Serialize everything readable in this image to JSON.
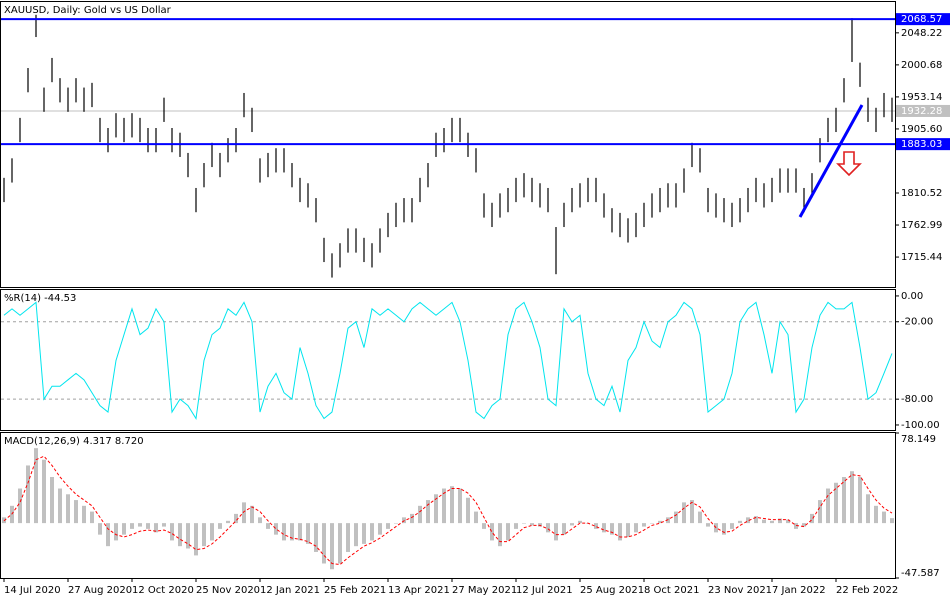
{
  "chart_data": [
    {
      "type": "hlc",
      "title": "XAUUSD, Daily:  Gold vs US Dollar",
      "color": "#000000",
      "low": [
        1797,
        1826,
        1886,
        1960,
        2042,
        1931,
        1975,
        1945,
        1931,
        1945,
        1931,
        1938,
        1886,
        1871,
        1893,
        1886,
        1893,
        1886,
        1871,
        1871,
        1916,
        1871,
        1864,
        1834,
        1782,
        1819,
        1849,
        1834,
        1856,
        1871,
        1923,
        1901,
        1826,
        1834,
        1841,
        1841,
        1819,
        1797,
        1789,
        1767,
        1708,
        1685,
        1700,
        1722,
        1722,
        1708,
        1700,
        1722,
        1745,
        1760,
        1767,
        1767,
        1797,
        1819,
        1864,
        1871,
        1886,
        1886,
        1864,
        1841,
        1774,
        1760,
        1774,
        1782,
        1797,
        1804,
        1797,
        1789,
        1782,
        1690,
        1760,
        1782,
        1789,
        1797,
        1797,
        1774,
        1752,
        1745,
        1737,
        1745,
        1760,
        1774,
        1782,
        1789,
        1789,
        1811,
        1849,
        1841,
        1782,
        1774,
        1767,
        1760,
        1767,
        1782,
        1797,
        1789,
        1797,
        1811,
        1811,
        1811,
        1782,
        1804,
        1856,
        1886,
        1901,
        1945,
        2005,
        1968,
        1916,
        1901,
        1923,
        1916
      ],
      "high": [
        1833,
        1862,
        1922,
        1996,
        2075,
        1967,
        2011,
        1981,
        1967,
        1981,
        1967,
        1974,
        1922,
        1907,
        1929,
        1922,
        1929,
        1922,
        1907,
        1907,
        1952,
        1907,
        1900,
        1870,
        1818,
        1855,
        1885,
        1870,
        1892,
        1907,
        1959,
        1937,
        1862,
        1870,
        1877,
        1877,
        1855,
        1833,
        1825,
        1803,
        1744,
        1721,
        1736,
        1758,
        1758,
        1744,
        1736,
        1758,
        1781,
        1796,
        1803,
        1803,
        1833,
        1855,
        1900,
        1907,
        1922,
        1922,
        1900,
        1877,
        1810,
        1796,
        1810,
        1818,
        1833,
        1840,
        1833,
        1825,
        1818,
        1760,
        1796,
        1818,
        1825,
        1833,
        1833,
        1810,
        1788,
        1781,
        1773,
        1781,
        1796,
        1810,
        1818,
        1825,
        1825,
        1847,
        1885,
        1877,
        1818,
        1810,
        1803,
        1796,
        1803,
        1818,
        1833,
        1825,
        1833,
        1847,
        1847,
        1847,
        1818,
        1840,
        1892,
        1922,
        1937,
        1981,
        2070,
        2004,
        1952,
        1937,
        1959,
        1952
      ],
      "ylim": [
        1671,
        2094
      ],
      "yticks": [
        2048.22,
        2000.68,
        1953.14,
        {
          "value": 1905.6,
          "label": "1905.60"
        },
        1810.52,
        1762.99,
        1715.44
      ],
      "levels": [
        {
          "value": 2068.57,
          "color": "#0000ff"
        },
        {
          "value": 1883.03,
          "color": "#0000ff"
        }
      ],
      "last_price": {
        "value": 1932.28,
        "color": "#c0c0c0"
      }
    },
    {
      "type": "line",
      "title": "%R(14) -44.53",
      "color": "#00e5ee",
      "values": [
        -15,
        -10,
        -15,
        -10,
        -5,
        -80,
        -70,
        -70,
        -65,
        -60,
        -65,
        -75,
        -85,
        -90,
        -50,
        -30,
        -10,
        -30,
        -25,
        -10,
        -20,
        -90,
        -80,
        -85,
        -95,
        -50,
        -30,
        -25,
        -10,
        -15,
        -5,
        -20,
        -90,
        -70,
        -60,
        -75,
        -80,
        -40,
        -60,
        -85,
        -95,
        -90,
        -60,
        -25,
        -20,
        -40,
        -10,
        -15,
        -10,
        -15,
        -20,
        -10,
        -5,
        -10,
        -15,
        -10,
        -5,
        -20,
        -50,
        -90,
        -95,
        -85,
        -80,
        -30,
        -10,
        -5,
        -20,
        -40,
        -80,
        -85,
        -10,
        -20,
        -15,
        -60,
        -80,
        -85,
        -70,
        -90,
        -50,
        -40,
        -20,
        -35,
        -40,
        -20,
        -15,
        -5,
        -10,
        -30,
        -90,
        -85,
        -80,
        -60,
        -20,
        -10,
        -5,
        -30,
        -60,
        -20,
        -30,
        -90,
        -80,
        -40,
        -15,
        -5,
        -10,
        -10,
        -5,
        -40,
        -80,
        -75,
        -60,
        -44.53
      ],
      "ylim": [
        -103.9,
        4.6
      ],
      "yticks": [
        {
          "value": 0,
          "label": "0.00"
        },
        {
          "value": -20,
          "label": "-20.00"
        },
        {
          "value": -80,
          "label": "-80.00"
        },
        {
          "value": -100,
          "label": "-100.00"
        }
      ],
      "levels": [
        -20,
        -80
      ]
    },
    {
      "type": "macd",
      "title": "MACD(12,26,9) 4.317 8.720",
      "categories": [
        "14 Jul 2020",
        null,
        null,
        null,
        null,
        null,
        null,
        null,
        "27 Aug 2020",
        null,
        null,
        null,
        null,
        null,
        null,
        null,
        "12 Oct 2020",
        null,
        null,
        null,
        null,
        null,
        null,
        null,
        "25 Nov 2020",
        null,
        null,
        null,
        null,
        null,
        null,
        null,
        "12 Jan 2021",
        null,
        null,
        null,
        null,
        null,
        null,
        null,
        "25 Feb 2021",
        null,
        null,
        null,
        null,
        null,
        null,
        null,
        "13 Apr 2021",
        null,
        null,
        null,
        null,
        null,
        null,
        null,
        "27 May 2021",
        null,
        null,
        null,
        null,
        null,
        null,
        null,
        "12 Jul 2021",
        null,
        null,
        null,
        null,
        null,
        null,
        null,
        "25 Aug 2021",
        null,
        null,
        null,
        null,
        null,
        null,
        null,
        "8 Oct 2021",
        null,
        null,
        null,
        null,
        null,
        null,
        null,
        "23 Nov 2021",
        null,
        null,
        null,
        null,
        null,
        null,
        null,
        "7 Jan 2022",
        null,
        null,
        null,
        null,
        null,
        null,
        null,
        "22 Feb 2022",
        null,
        null,
        null,
        null,
        null,
        null,
        null
      ],
      "series": [
        {
          "name": "MACD",
          "color": "#c0c0c0",
          "values": [
            5,
            15,
            30,
            50,
            65,
            55,
            40,
            30,
            25,
            20,
            15,
            10,
            -10,
            -20,
            -15,
            -10,
            -5,
            -3,
            -5,
            -8,
            -3,
            -15,
            -20,
            -22,
            -28,
            -20,
            -15,
            -5,
            2,
            8,
            18,
            15,
            5,
            -5,
            -10,
            -15,
            -15,
            -15,
            -18,
            -25,
            -35,
            -40,
            -35,
            -25,
            -20,
            -18,
            -15,
            -10,
            -5,
            0,
            5,
            8,
            15,
            20,
            25,
            30,
            32,
            30,
            22,
            10,
            -5,
            -15,
            -20,
            -15,
            -5,
            0,
            -2,
            -3,
            -8,
            -15,
            -10,
            -2,
            2,
            0,
            -5,
            -8,
            -10,
            -15,
            -12,
            -8,
            -3,
            0,
            2,
            5,
            10,
            18,
            20,
            10,
            -3,
            -8,
            -10,
            -5,
            2,
            5,
            6,
            3,
            2,
            4,
            3,
            -5,
            -3,
            8,
            20,
            30,
            35,
            40,
            45,
            40,
            25,
            15,
            10,
            4.317
          ]
        },
        {
          "name": "Signal",
          "color": "#ff0000",
          "values": [
            2,
            8,
            18,
            35,
            55,
            58,
            50,
            40,
            32,
            25,
            20,
            15,
            5,
            -5,
            -10,
            -12,
            -10,
            -7,
            -6,
            -7,
            -6,
            -9,
            -14,
            -18,
            -23,
            -22,
            -18,
            -12,
            -5,
            2,
            10,
            14,
            10,
            2,
            -5,
            -10,
            -13,
            -14,
            -16,
            -20,
            -28,
            -35,
            -36,
            -30,
            -25,
            -20,
            -17,
            -13,
            -8,
            -3,
            2,
            5,
            10,
            16,
            21,
            26,
            30,
            30,
            26,
            18,
            5,
            -8,
            -16,
            -16,
            -10,
            -4,
            -2,
            -2,
            -5,
            -10,
            -10,
            -5,
            0,
            0,
            -3,
            -6,
            -8,
            -12,
            -12,
            -10,
            -6,
            -2,
            0,
            3,
            7,
            13,
            18,
            14,
            4,
            -4,
            -8,
            -7,
            -2,
            2,
            5,
            4,
            3,
            3,
            3,
            -2,
            -3,
            3,
            14,
            24,
            30,
            36,
            42,
            41,
            30,
            20,
            13,
            8.72
          ]
        }
      ],
      "ylim": [
        -47.587,
        78.149
      ],
      "yticks": [
        78.149,
        -47.587
      ]
    }
  ]
}
